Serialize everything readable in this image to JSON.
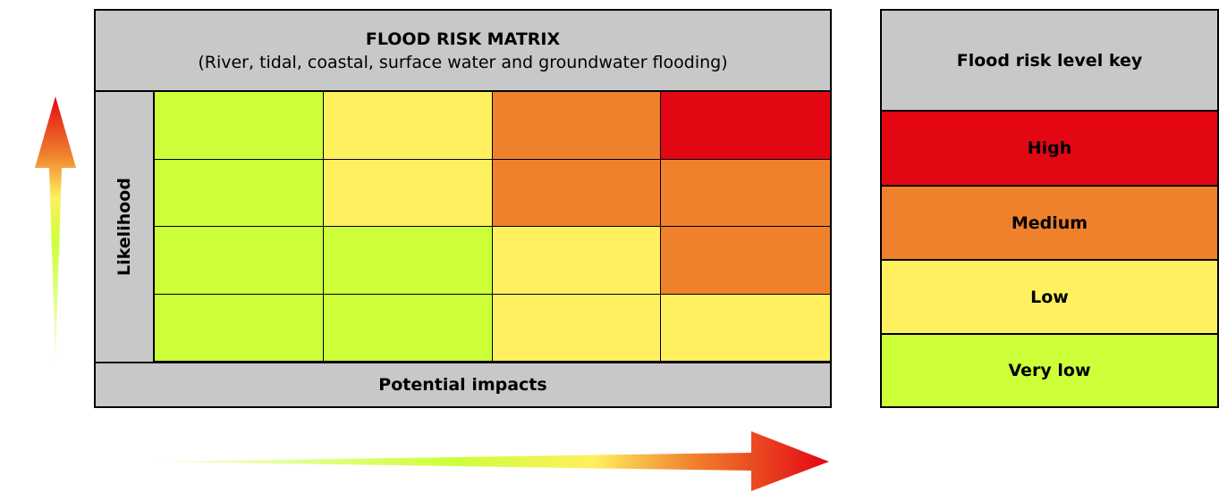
{
  "matrix": {
    "title": "FLOOD RISK MATRIX",
    "subtitle": "(River, tidal, coastal, surface water and groundwater flooding)",
    "y_label": "Likelihood",
    "x_label": "Potential impacts",
    "rows": [
      [
        "very_low",
        "low",
        "medium",
        "high"
      ],
      [
        "very_low",
        "low",
        "medium",
        "medium"
      ],
      [
        "very_low",
        "very_low",
        "low",
        "medium"
      ],
      [
        "very_low",
        "very_low",
        "low",
        "low"
      ]
    ]
  },
  "key": {
    "title": "Flood risk level key",
    "levels": [
      {
        "id": "high",
        "label": "High",
        "color": "#e30613"
      },
      {
        "id": "medium",
        "label": "Medium",
        "color": "#f0812c"
      },
      {
        "id": "low",
        "label": "Low",
        "color": "#fff060"
      },
      {
        "id": "very_low",
        "label": "Very low",
        "color": "#cdff38"
      }
    ]
  },
  "colors": {
    "header_gray": "#c8c8c8",
    "arrow_gradient": [
      "#cdff38",
      "#fff060",
      "#f0812c",
      "#e30613"
    ]
  }
}
